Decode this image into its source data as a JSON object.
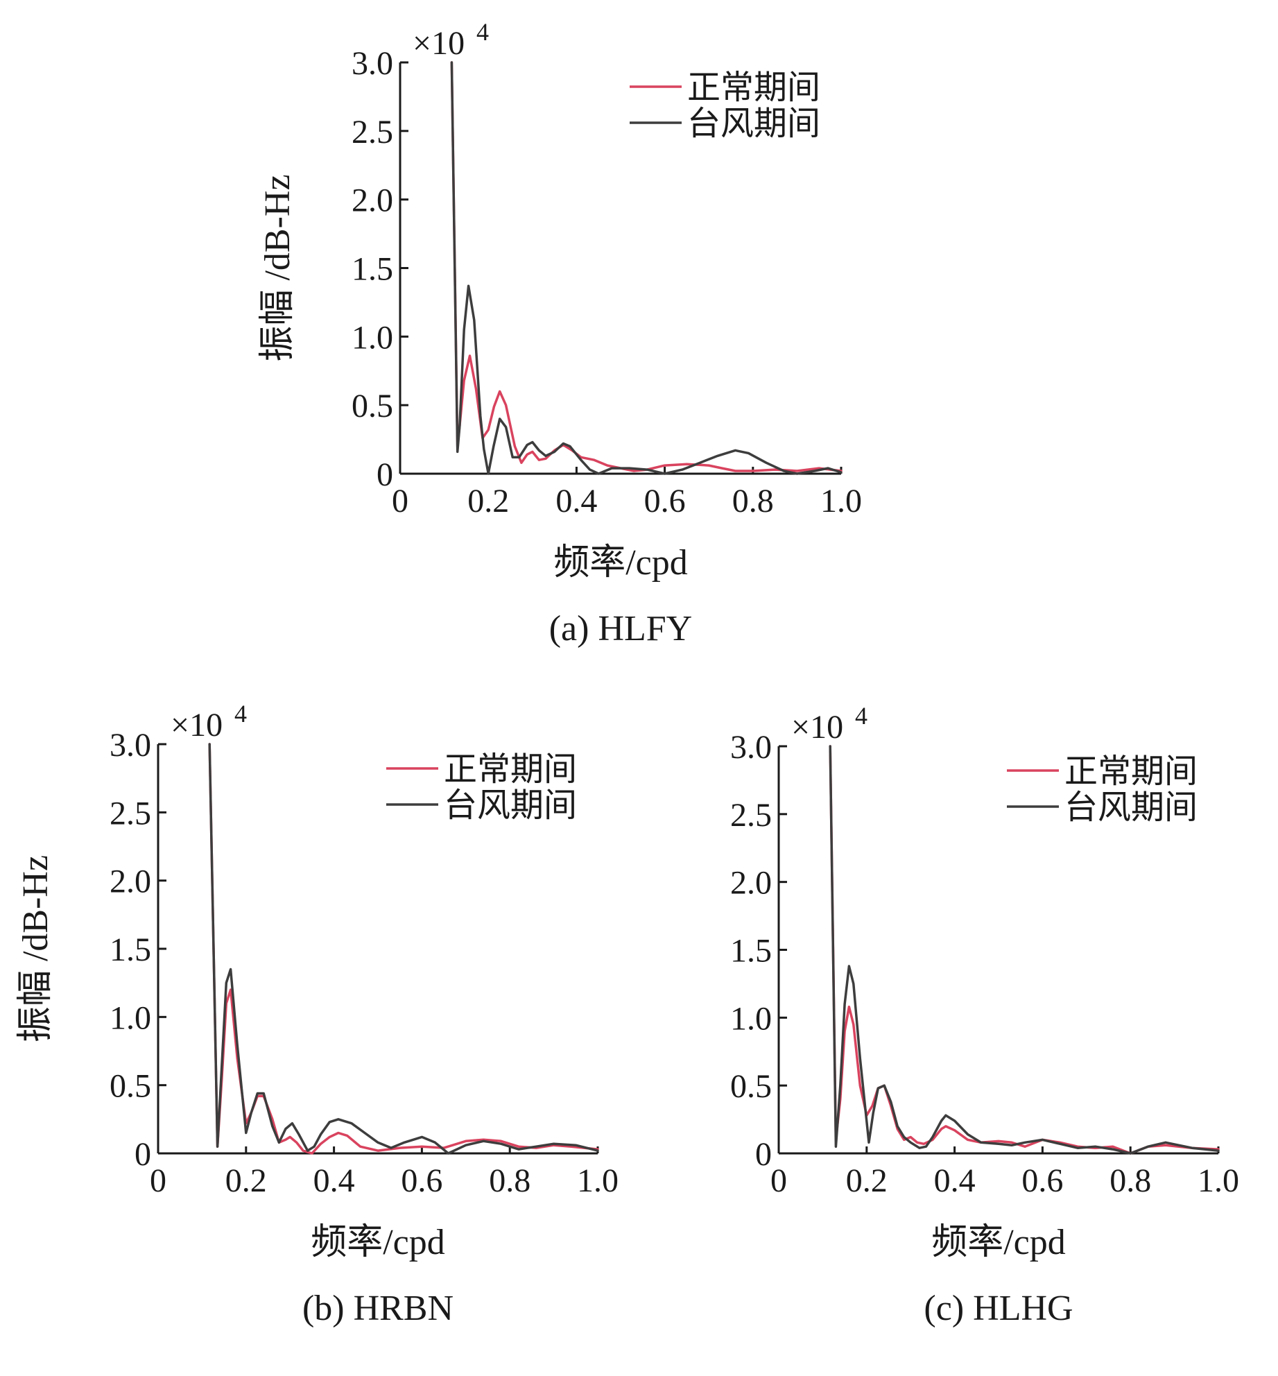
{
  "chart_data": [
    {
      "type": "line",
      "caption": "(a) HLFY",
      "xlabel": "频率/cpd",
      "ylabel": "振幅 /dB-Hz",
      "y_multiplier_label": "×10",
      "y_multiplier_exponent": "4",
      "xlim": [
        0,
        1.0
      ],
      "ylim": [
        0,
        3.0
      ],
      "x_ticks": [
        "0",
        "0.2",
        "0.4",
        "0.6",
        "0.8",
        "1.0"
      ],
      "y_ticks": [
        "0",
        "0.5",
        "1.0",
        "1.5",
        "2.0",
        "2.5",
        "3.0"
      ],
      "grid": false,
      "legend_position": "top-right",
      "series": [
        {
          "name": "正常期间",
          "color": "#d9435e",
          "points": [
            [
              0.117,
              3.0
            ],
            [
              0.13,
              0.2
            ],
            [
              0.135,
              0.35
            ],
            [
              0.145,
              0.68
            ],
            [
              0.158,
              0.86
            ],
            [
              0.172,
              0.62
            ],
            [
              0.187,
              0.26
            ],
            [
              0.2,
              0.32
            ],
            [
              0.213,
              0.49
            ],
            [
              0.226,
              0.6
            ],
            [
              0.24,
              0.5
            ],
            [
              0.26,
              0.2
            ],
            [
              0.275,
              0.08
            ],
            [
              0.288,
              0.14
            ],
            [
              0.3,
              0.16
            ],
            [
              0.315,
              0.1
            ],
            [
              0.33,
              0.11
            ],
            [
              0.35,
              0.17
            ],
            [
              0.37,
              0.21
            ],
            [
              0.39,
              0.17
            ],
            [
              0.41,
              0.12
            ],
            [
              0.44,
              0.1
            ],
            [
              0.47,
              0.06
            ],
            [
              0.5,
              0.04
            ],
            [
              0.53,
              0.02
            ],
            [
              0.56,
              0.03
            ],
            [
              0.6,
              0.06
            ],
            [
              0.65,
              0.07
            ],
            [
              0.7,
              0.06
            ],
            [
              0.73,
              0.04
            ],
            [
              0.76,
              0.02
            ],
            [
              0.8,
              0.02
            ],
            [
              0.85,
              0.03
            ],
            [
              0.9,
              0.02
            ],
            [
              0.95,
              0.04
            ],
            [
              1.0,
              0.02
            ]
          ]
        },
        {
          "name": "台风期间",
          "color": "#3d3d3d",
          "points": [
            [
              0.117,
              3.0
            ],
            [
              0.13,
              0.16
            ],
            [
              0.135,
              0.35
            ],
            [
              0.145,
              1.05
            ],
            [
              0.155,
              1.37
            ],
            [
              0.168,
              1.12
            ],
            [
              0.182,
              0.42
            ],
            [
              0.19,
              0.18
            ],
            [
              0.2,
              0.0
            ],
            [
              0.212,
              0.2
            ],
            [
              0.226,
              0.4
            ],
            [
              0.24,
              0.34
            ],
            [
              0.255,
              0.12
            ],
            [
              0.27,
              0.12
            ],
            [
              0.288,
              0.21
            ],
            [
              0.3,
              0.23
            ],
            [
              0.315,
              0.17
            ],
            [
              0.33,
              0.13
            ],
            [
              0.35,
              0.16
            ],
            [
              0.37,
              0.22
            ],
            [
              0.385,
              0.2
            ],
            [
              0.41,
              0.1
            ],
            [
              0.43,
              0.03
            ],
            [
              0.45,
              0.0
            ],
            [
              0.48,
              0.04
            ],
            [
              0.52,
              0.04
            ],
            [
              0.56,
              0.03
            ],
            [
              0.6,
              0.0
            ],
            [
              0.64,
              0.03
            ],
            [
              0.68,
              0.08
            ],
            [
              0.72,
              0.13
            ],
            [
              0.76,
              0.17
            ],
            [
              0.79,
              0.15
            ],
            [
              0.83,
              0.08
            ],
            [
              0.87,
              0.02
            ],
            [
              0.9,
              0.0
            ],
            [
              0.94,
              0.02
            ],
            [
              0.97,
              0.04
            ],
            [
              1.0,
              0.01
            ]
          ]
        }
      ]
    },
    {
      "type": "line",
      "caption": "(b) HRBN",
      "xlabel": "频率/cpd",
      "ylabel": "振幅 /dB-Hz",
      "y_multiplier_label": "×10",
      "y_multiplier_exponent": "4",
      "xlim": [
        0,
        1.0
      ],
      "ylim": [
        0,
        3.0
      ],
      "x_ticks": [
        "0",
        "0.2",
        "0.4",
        "0.6",
        "0.8",
        "1.0"
      ],
      "y_ticks": [
        "0",
        "0.5",
        "1.0",
        "1.5",
        "2.0",
        "2.5",
        "3.0"
      ],
      "grid": false,
      "legend_position": "top-right",
      "series": [
        {
          "name": "正常期间",
          "color": "#d9435e",
          "points": [
            [
              0.117,
              3.0
            ],
            [
              0.135,
              0.05
            ],
            [
              0.145,
              0.55
            ],
            [
              0.155,
              1.1
            ],
            [
              0.165,
              1.2
            ],
            [
              0.18,
              0.7
            ],
            [
              0.2,
              0.22
            ],
            [
              0.212,
              0.3
            ],
            [
              0.226,
              0.42
            ],
            [
              0.24,
              0.42
            ],
            [
              0.26,
              0.25
            ],
            [
              0.275,
              0.08
            ],
            [
              0.29,
              0.1
            ],
            [
              0.3,
              0.12
            ],
            [
              0.315,
              0.08
            ],
            [
              0.33,
              0.02
            ],
            [
              0.35,
              0.0
            ],
            [
              0.37,
              0.07
            ],
            [
              0.39,
              0.12
            ],
            [
              0.41,
              0.15
            ],
            [
              0.43,
              0.13
            ],
            [
              0.46,
              0.05
            ],
            [
              0.5,
              0.02
            ],
            [
              0.55,
              0.04
            ],
            [
              0.6,
              0.05
            ],
            [
              0.65,
              0.04
            ],
            [
              0.7,
              0.09
            ],
            [
              0.74,
              0.1
            ],
            [
              0.78,
              0.09
            ],
            [
              0.82,
              0.05
            ],
            [
              0.86,
              0.04
            ],
            [
              0.9,
              0.06
            ],
            [
              0.94,
              0.05
            ],
            [
              1.0,
              0.03
            ]
          ]
        },
        {
          "name": "台风期间",
          "color": "#3d3d3d",
          "points": [
            [
              0.117,
              3.0
            ],
            [
              0.135,
              0.05
            ],
            [
              0.145,
              0.65
            ],
            [
              0.155,
              1.25
            ],
            [
              0.165,
              1.35
            ],
            [
              0.18,
              0.8
            ],
            [
              0.2,
              0.15
            ],
            [
              0.212,
              0.3
            ],
            [
              0.226,
              0.44
            ],
            [
              0.24,
              0.44
            ],
            [
              0.26,
              0.2
            ],
            [
              0.275,
              0.08
            ],
            [
              0.29,
              0.18
            ],
            [
              0.305,
              0.22
            ],
            [
              0.32,
              0.14
            ],
            [
              0.34,
              0.02
            ],
            [
              0.355,
              0.05
            ],
            [
              0.37,
              0.14
            ],
            [
              0.39,
              0.23
            ],
            [
              0.41,
              0.25
            ],
            [
              0.44,
              0.22
            ],
            [
              0.47,
              0.15
            ],
            [
              0.5,
              0.08
            ],
            [
              0.53,
              0.04
            ],
            [
              0.56,
              0.08
            ],
            [
              0.6,
              0.12
            ],
            [
              0.63,
              0.08
            ],
            [
              0.66,
              0.0
            ],
            [
              0.7,
              0.06
            ],
            [
              0.74,
              0.09
            ],
            [
              0.78,
              0.07
            ],
            [
              0.82,
              0.03
            ],
            [
              0.86,
              0.05
            ],
            [
              0.9,
              0.07
            ],
            [
              0.95,
              0.06
            ],
            [
              1.0,
              0.02
            ]
          ]
        }
      ]
    },
    {
      "type": "line",
      "caption": "(c) HLHG",
      "xlabel": "频率/cpd",
      "ylabel": "",
      "y_multiplier_label": "×10",
      "y_multiplier_exponent": "4",
      "xlim": [
        0,
        1.0
      ],
      "ylim": [
        0,
        3.0
      ],
      "x_ticks": [
        "0",
        "0.2",
        "0.4",
        "0.6",
        "0.8",
        "1.0"
      ],
      "y_ticks": [
        "0",
        "0.5",
        "1.0",
        "1.5",
        "2.0",
        "2.5",
        "3.0"
      ],
      "grid": false,
      "legend_position": "top-right",
      "series": [
        {
          "name": "正常期间",
          "color": "#d9435e",
          "points": [
            [
              0.117,
              3.0
            ],
            [
              0.13,
              0.1
            ],
            [
              0.14,
              0.4
            ],
            [
              0.15,
              0.9
            ],
            [
              0.16,
              1.08
            ],
            [
              0.17,
              0.95
            ],
            [
              0.185,
              0.5
            ],
            [
              0.2,
              0.28
            ],
            [
              0.213,
              0.35
            ],
            [
              0.226,
              0.48
            ],
            [
              0.24,
              0.5
            ],
            [
              0.255,
              0.35
            ],
            [
              0.27,
              0.18
            ],
            [
              0.285,
              0.1
            ],
            [
              0.3,
              0.12
            ],
            [
              0.315,
              0.08
            ],
            [
              0.33,
              0.07
            ],
            [
              0.35,
              0.1
            ],
            [
              0.37,
              0.18
            ],
            [
              0.38,
              0.2
            ],
            [
              0.4,
              0.17
            ],
            [
              0.43,
              0.1
            ],
            [
              0.46,
              0.08
            ],
            [
              0.5,
              0.09
            ],
            [
              0.53,
              0.08
            ],
            [
              0.56,
              0.05
            ],
            [
              0.6,
              0.1
            ],
            [
              0.64,
              0.08
            ],
            [
              0.68,
              0.05
            ],
            [
              0.72,
              0.04
            ],
            [
              0.76,
              0.05
            ],
            [
              0.8,
              0.0
            ],
            [
              0.84,
              0.05
            ],
            [
              0.88,
              0.06
            ],
            [
              0.94,
              0.04
            ],
            [
              1.0,
              0.03
            ]
          ]
        },
        {
          "name": "台风期间",
          "color": "#3d3d3d",
          "points": [
            [
              0.117,
              3.0
            ],
            [
              0.13,
              0.05
            ],
            [
              0.14,
              0.5
            ],
            [
              0.15,
              1.1
            ],
            [
              0.16,
              1.38
            ],
            [
              0.17,
              1.25
            ],
            [
              0.185,
              0.7
            ],
            [
              0.205,
              0.08
            ],
            [
              0.215,
              0.3
            ],
            [
              0.226,
              0.48
            ],
            [
              0.24,
              0.5
            ],
            [
              0.255,
              0.38
            ],
            [
              0.27,
              0.2
            ],
            [
              0.285,
              0.12
            ],
            [
              0.3,
              0.08
            ],
            [
              0.32,
              0.04
            ],
            [
              0.335,
              0.05
            ],
            [
              0.35,
              0.12
            ],
            [
              0.37,
              0.24
            ],
            [
              0.38,
              0.28
            ],
            [
              0.4,
              0.24
            ],
            [
              0.43,
              0.14
            ],
            [
              0.46,
              0.08
            ],
            [
              0.5,
              0.07
            ],
            [
              0.53,
              0.06
            ],
            [
              0.56,
              0.08
            ],
            [
              0.6,
              0.1
            ],
            [
              0.64,
              0.07
            ],
            [
              0.68,
              0.04
            ],
            [
              0.72,
              0.05
            ],
            [
              0.76,
              0.03
            ],
            [
              0.8,
              0.0
            ],
            [
              0.84,
              0.05
            ],
            [
              0.88,
              0.08
            ],
            [
              0.94,
              0.04
            ],
            [
              1.0,
              0.02
            ]
          ]
        }
      ]
    }
  ]
}
